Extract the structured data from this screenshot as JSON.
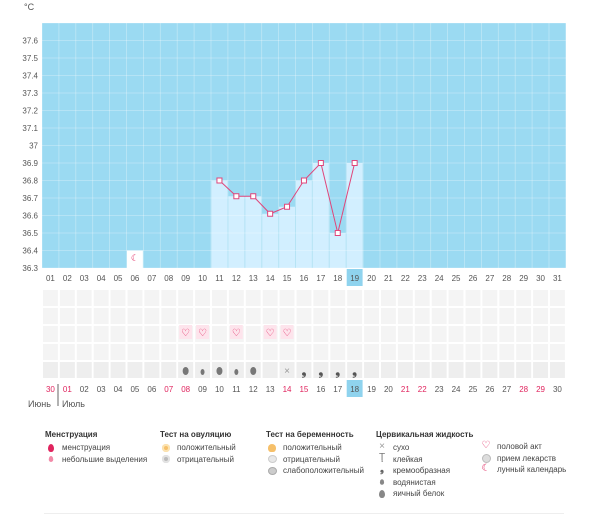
{
  "chart_data": {
    "type": "line",
    "ylabel": "°C",
    "ylim": [
      36.3,
      37.7
    ],
    "y_ticks": [
      "36.3",
      "36.4",
      "36.5",
      "36.6",
      "36.7",
      "36.8",
      "36.9",
      "37",
      "37.1",
      "37.2",
      "37.3",
      "37.4",
      "37.5",
      "37.6"
    ],
    "cycle_days": [
      "01",
      "02",
      "03",
      "04",
      "05",
      "06",
      "07",
      "08",
      "09",
      "10",
      "11",
      "12",
      "13",
      "14",
      "15",
      "16",
      "17",
      "18",
      "19",
      "20",
      "21",
      "22",
      "23",
      "24",
      "25",
      "26",
      "27",
      "28",
      "29",
      "30",
      "31"
    ],
    "current_day": "19",
    "series": [
      {
        "x": [
          "11",
          "12",
          "13",
          "14",
          "15",
          "16",
          "17",
          "18",
          "19"
        ],
        "values": [
          36.8,
          36.71,
          36.71,
          36.61,
          36.65,
          36.8,
          36.9,
          36.5,
          36.9
        ]
      }
    ],
    "marker_lunar_day": "06",
    "intercourse_days": [
      "09",
      "10",
      "12",
      "14",
      "15"
    ],
    "fluid_row": {
      "09": "drop-gray",
      "10": "drop-small",
      "11": "drop-gray",
      "12": "drop-small",
      "13": "drop-gray",
      "15": "dry",
      "16": "cream",
      "17": "cream",
      "18": "cream",
      "19": "cream"
    },
    "calendar_dates": [
      "30",
      "01",
      "02",
      "03",
      "04",
      "05",
      "06",
      "07",
      "08",
      "09",
      "10",
      "11",
      "12",
      "13",
      "14",
      "15",
      "16",
      "17",
      "18",
      "19",
      "20",
      "21",
      "22",
      "23",
      "24",
      "25",
      "26",
      "27",
      "28",
      "29",
      "30"
    ],
    "calendar_red_dates_idx": [
      0,
      1,
      7,
      8,
      14,
      15,
      21,
      22,
      28,
      29
    ],
    "calendar_current_idx": 18,
    "month_labels": {
      "first": "Июнь",
      "second": "Июль"
    },
    "colors": {
      "band": "#9bdaf2",
      "bar": "#d2efff",
      "line": "#e0457a",
      "red": "#e0245e",
      "current": "#8fd3ee"
    }
  },
  "legend": {
    "menstruation": {
      "title": "Менструация",
      "items": [
        "менструация",
        "небольшие выделения"
      ]
    },
    "ovulation": {
      "title": "Тест на овуляцию",
      "items": [
        "положительный",
        "отрицательный"
      ]
    },
    "pregnancy": {
      "title": "Тест на беременность",
      "items": [
        "положительный",
        "отрицательный",
        "слабоположительный"
      ]
    },
    "cervical": {
      "title": "Цервикальная жидкость",
      "items": [
        "сухо",
        "клейкая",
        "кремообразная",
        "водянистая",
        "яичный белок"
      ]
    },
    "other": {
      "items": [
        "половой акт",
        "прием лекарств",
        "лунный календарь"
      ]
    }
  }
}
